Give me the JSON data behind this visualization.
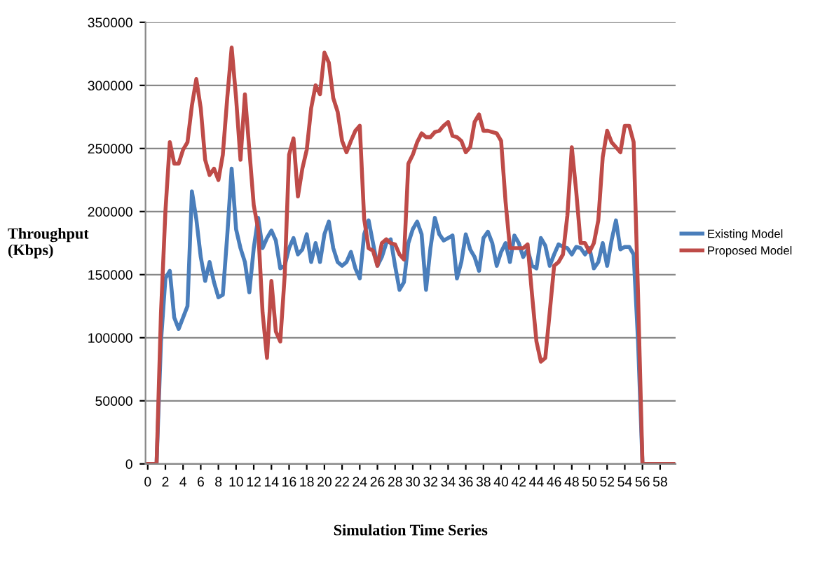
{
  "chart_data": {
    "type": "line",
    "xlabel": "Simulation Time Series",
    "ylabel": "Throughput\n(Kbps)",
    "x": [
      0,
      0.5,
      1,
      1.5,
      2,
      2.5,
      3,
      3.5,
      4,
      4.5,
      5,
      5.5,
      6,
      6.5,
      7,
      7.5,
      8,
      8.5,
      9,
      9.5,
      10,
      10.5,
      11,
      11.5,
      12,
      12.5,
      13,
      13.5,
      14,
      14.5,
      15,
      15.5,
      16,
      16.5,
      17,
      17.5,
      18,
      18.5,
      19,
      19.5,
      20,
      20.5,
      21,
      21.5,
      22,
      22.5,
      23,
      23.5,
      24,
      24.5,
      25,
      25.5,
      26,
      26.5,
      27,
      27.5,
      28,
      28.5,
      29,
      29.5,
      30,
      30.5,
      31,
      31.5,
      32,
      32.5,
      33,
      33.5,
      34,
      34.5,
      35,
      35.5,
      36,
      36.5,
      37,
      37.5,
      38,
      38.5,
      39,
      39.5,
      40,
      40.5,
      41,
      41.5,
      42,
      42.5,
      43,
      43.5,
      44,
      44.5,
      45,
      45.5,
      46,
      46.5,
      47,
      47.5,
      48,
      48.5,
      49,
      49.5,
      50,
      50.5,
      51,
      51.5,
      52,
      52.5,
      53,
      53.5,
      54,
      54.5,
      55,
      55.5,
      56,
      56.5,
      57,
      57.5,
      58,
      58.5,
      59,
      59.5
    ],
    "series": [
      {
        "name": "Existing Model",
        "color": "#4a7ebb",
        "values": [
          0,
          0,
          0,
          97000,
          147000,
          153000,
          116000,
          107000,
          116000,
          125000,
          216000,
          194000,
          164000,
          145000,
          160000,
          144000,
          132000,
          134000,
          181000,
          234000,
          186000,
          171000,
          160000,
          136000,
          171000,
          195000,
          171000,
          179000,
          185000,
          177000,
          155000,
          157000,
          171000,
          179000,
          166000,
          170000,
          182000,
          160000,
          175000,
          160000,
          182000,
          192000,
          171000,
          160000,
          157000,
          160000,
          168000,
          155000,
          147000,
          182000,
          193000,
          175000,
          157000,
          164000,
          175000,
          178000,
          157000,
          138000,
          144000,
          175000,
          186000,
          192000,
          182000,
          138000,
          171000,
          195000,
          182000,
          177000,
          179000,
          181000,
          147000,
          160000,
          182000,
          170000,
          164000,
          153000,
          179000,
          184000,
          175000,
          157000,
          168000,
          175000,
          160000,
          181000,
          175000,
          164000,
          170000,
          157000,
          155000,
          179000,
          173000,
          157000,
          166000,
          174000,
          172000,
          171000,
          166000,
          172000,
          171000,
          166000,
          171000,
          155000,
          160000,
          175000,
          157000,
          177000,
          193000,
          170000,
          172000,
          172000,
          166000,
          97000,
          0,
          null,
          null,
          null,
          null,
          null,
          null,
          null
        ]
      },
      {
        "name": "Proposed Model",
        "color": "#be4b48",
        "values": [
          0,
          0,
          0,
          120000,
          200000,
          255000,
          238000,
          238000,
          249000,
          255000,
          284000,
          305000,
          282000,
          241000,
          229000,
          234000,
          225000,
          245000,
          290000,
          330000,
          290000,
          241000,
          293000,
          249000,
          205000,
          186000,
          120000,
          84000,
          145000,
          105000,
          97000,
          149000,
          245000,
          258000,
          212000,
          234000,
          249000,
          282000,
          300000,
          293000,
          326000,
          318000,
          290000,
          279000,
          256000,
          247000,
          256000,
          264000,
          268000,
          194000,
          171000,
          169000,
          157000,
          175000,
          178000,
          175000,
          174000,
          166000,
          162000,
          238000,
          245000,
          255000,
          262000,
          259000,
          259000,
          263000,
          264000,
          268000,
          271000,
          260000,
          259000,
          256000,
          247000,
          251000,
          271000,
          277000,
          264000,
          264000,
          263000,
          262000,
          256000,
          208000,
          171000,
          171000,
          171000,
          171000,
          174000,
          134000,
          97000,
          81000,
          84000,
          120000,
          157000,
          160000,
          166000,
          197000,
          251000,
          216000,
          175000,
          175000,
          168000,
          175000,
          193000,
          243000,
          264000,
          255000,
          251000,
          247000,
          268000,
          268000,
          255000,
          134000,
          0,
          0,
          0,
          0,
          0,
          0,
          0,
          0
        ]
      }
    ],
    "xlim": [
      -0.25,
      59.75
    ],
    "xticks": [
      0,
      2,
      4,
      6,
      8,
      10,
      12,
      14,
      16,
      18,
      20,
      22,
      24,
      26,
      28,
      30,
      32,
      34,
      36,
      38,
      40,
      42,
      44,
      46,
      48,
      50,
      52,
      54,
      56,
      58
    ],
    "ylim": [
      0,
      350000
    ],
    "yticks": [
      0,
      50000,
      100000,
      150000,
      200000,
      250000,
      300000,
      350000
    ],
    "grid": "y",
    "legend": "right",
    "marker": "none",
    "line_style": "solid"
  }
}
